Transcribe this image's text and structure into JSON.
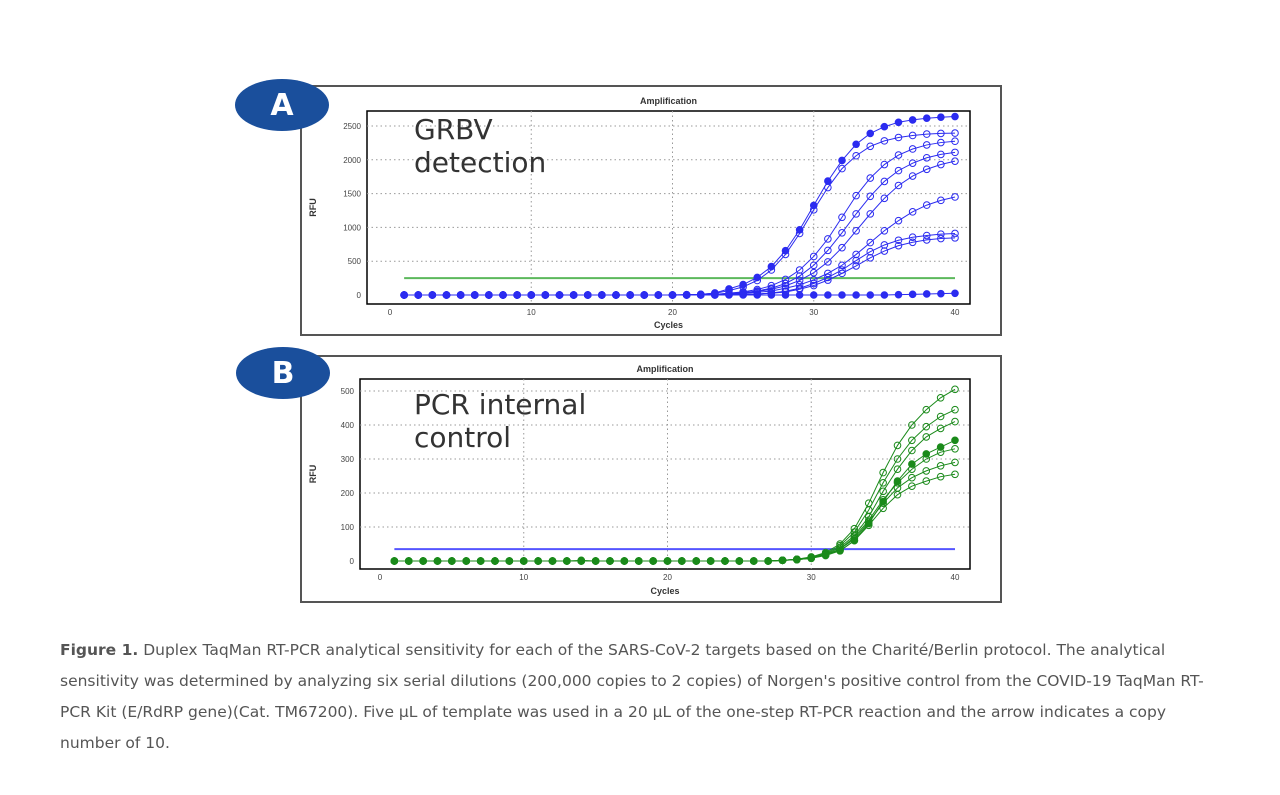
{
  "figure": {
    "panel_a": {
      "badge": "A",
      "overlay_line1": "GRBV",
      "overlay_line2": "detection"
    },
    "panel_b": {
      "badge": "B",
      "overlay_line1": "PCR internal",
      "overlay_line2": "control"
    },
    "caption_label": "Figure 1.",
    "caption_text": " Duplex TaqMan RT-PCR analytical sensitivity for each of the SARS-CoV-2 targets based on the Charité/Berlin protocol. The analytical sensitivity was determined by analyzing six serial dilutions (200,000 copies to 2 copies) of Norgen's positive control from the COVID-19 TaqMan RT-PCR Kit (E/RdRP gene)(Cat. TM67200). Five µL of template was used in a 20 µL of the one-step RT-PCR reaction and the arrow indicates a copy number of 10."
  },
  "chart_data": [
    {
      "type": "line",
      "title": "Amplification",
      "xlabel": "Cycles",
      "ylabel": "RFU",
      "xlim": [
        0,
        40
      ],
      "ylim": [
        0,
        2500
      ],
      "xticks": [
        0,
        10,
        20,
        30,
        40
      ],
      "yticks": [
        0,
        500,
        1000,
        1500,
        2000,
        2500
      ],
      "grid": true,
      "series_color": "#2b2bf0",
      "threshold": {
        "value": 250,
        "color": "#5cb85c"
      },
      "x": [
        1,
        2,
        3,
        4,
        5,
        6,
        7,
        8,
        9,
        10,
        11,
        12,
        13,
        14,
        15,
        16,
        17,
        18,
        19,
        20,
        21,
        22,
        23,
        24,
        25,
        26,
        27,
        28,
        29,
        30,
        31,
        32,
        33,
        34,
        35,
        36,
        37,
        38,
        39,
        40
      ],
      "series": [
        {
          "filled": true,
          "y": [
            0,
            0,
            0,
            0,
            0,
            0,
            0,
            0,
            0,
            0,
            0,
            0,
            0,
            0,
            0,
            0,
            0,
            0,
            0,
            0,
            5,
            10,
            30,
            90,
            155,
            260,
            420,
            655,
            965,
            1325,
            1685,
            1990,
            2230,
            2390,
            2490,
            2555,
            2590,
            2615,
            2630,
            2640
          ]
        },
        {
          "filled": false,
          "y": [
            0,
            0,
            0,
            0,
            0,
            0,
            0,
            0,
            0,
            0,
            0,
            0,
            0,
            0,
            0,
            0,
            0,
            0,
            0,
            0,
            5,
            10,
            25,
            65,
            120,
            215,
            370,
            600,
            910,
            1260,
            1590,
            1870,
            2060,
            2200,
            2280,
            2330,
            2360,
            2380,
            2390,
            2395
          ]
        },
        {
          "filled": false,
          "y": [
            0,
            0,
            0,
            0,
            0,
            0,
            0,
            0,
            0,
            0,
            0,
            0,
            0,
            0,
            0,
            0,
            0,
            0,
            0,
            0,
            0,
            5,
            10,
            27,
            47,
            81,
            138,
            230,
            370,
            570,
            830,
            1150,
            1470,
            1730,
            1930,
            2070,
            2160,
            2220,
            2255,
            2275
          ]
        },
        {
          "filled": false,
          "y": [
            0,
            0,
            0,
            0,
            0,
            0,
            0,
            0,
            0,
            0,
            0,
            0,
            0,
            0,
            0,
            0,
            0,
            0,
            0,
            0,
            0,
            5,
            10,
            20,
            35,
            60,
            100,
            170,
            280,
            440,
            660,
            920,
            1200,
            1460,
            1680,
            1840,
            1950,
            2030,
            2080,
            2110
          ]
        },
        {
          "filled": false,
          "y": [
            0,
            0,
            0,
            0,
            0,
            0,
            0,
            0,
            0,
            0,
            0,
            0,
            0,
            0,
            0,
            0,
            0,
            0,
            0,
            0,
            0,
            5,
            10,
            20,
            32,
            53,
            85,
            135,
            215,
            330,
            490,
            700,
            950,
            1200,
            1430,
            1620,
            1760,
            1860,
            1930,
            1980
          ]
        },
        {
          "filled": false,
          "y": [
            0,
            0,
            0,
            0,
            0,
            0,
            0,
            0,
            0,
            0,
            0,
            0,
            0,
            0,
            0,
            0,
            0,
            0,
            0,
            0,
            0,
            0,
            5,
            15,
            25,
            40,
            60,
            100,
            150,
            225,
            320,
            440,
            600,
            775,
            950,
            1100,
            1230,
            1330,
            1400,
            1450
          ]
        },
        {
          "filled": false,
          "y": [
            0,
            0,
            0,
            0,
            0,
            0,
            0,
            0,
            0,
            0,
            0,
            0,
            0,
            0,
            0,
            0,
            0,
            0,
            0,
            0,
            0,
            0,
            0,
            5,
            10,
            15,
            30,
            55,
            100,
            170,
            260,
            370,
            510,
            640,
            740,
            810,
            855,
            880,
            900,
            910
          ]
        },
        {
          "filled": false,
          "y": [
            0,
            0,
            0,
            0,
            0,
            0,
            0,
            0,
            0,
            0,
            0,
            0,
            0,
            0,
            0,
            0,
            0,
            0,
            0,
            0,
            0,
            0,
            0,
            5,
            10,
            15,
            25,
            45,
            85,
            140,
            220,
            320,
            430,
            550,
            650,
            730,
            780,
            815,
            835,
            845
          ]
        },
        {
          "filled": true,
          "y": [
            0,
            0,
            0,
            0,
            0,
            0,
            0,
            0,
            0,
            0,
            0,
            0,
            0,
            0,
            0,
            0,
            0,
            0,
            0,
            0,
            0,
            0,
            0,
            0,
            0,
            0,
            0,
            0,
            0,
            0,
            0,
            0,
            0,
            0,
            0,
            5,
            10,
            15,
            20,
            25
          ]
        }
      ]
    },
    {
      "type": "line",
      "title": "Amplification",
      "xlabel": "Cycles",
      "ylabel": "RFU",
      "xlim": [
        0,
        40
      ],
      "ylim": [
        0,
        500
      ],
      "xticks": [
        0,
        10,
        20,
        30,
        40
      ],
      "yticks": [
        0,
        100,
        200,
        300,
        400,
        500
      ],
      "grid": true,
      "series_color": "#1a8a1a",
      "threshold": {
        "value": 35,
        "color": "#5555ff"
      },
      "x": [
        1,
        2,
        3,
        4,
        5,
        6,
        7,
        8,
        9,
        10,
        11,
        12,
        13,
        14,
        15,
        16,
        17,
        18,
        19,
        20,
        21,
        22,
        23,
        24,
        25,
        26,
        27,
        28,
        29,
        30,
        31,
        32,
        33,
        34,
        35,
        36,
        37,
        38,
        39,
        40
      ],
      "series": [
        {
          "filled": false,
          "y": [
            0,
            0,
            0,
            0,
            0,
            0,
            0,
            0,
            0,
            0,
            0,
            0,
            0,
            0,
            0,
            0,
            0,
            0,
            0,
            0,
            0,
            0,
            0,
            0,
            0,
            0,
            0,
            2,
            5,
            12,
            25,
            50,
            95,
            170,
            260,
            340,
            400,
            445,
            480,
            505
          ]
        },
        {
          "filled": false,
          "y": [
            0,
            0,
            0,
            0,
            0,
            0,
            0,
            0,
            0,
            0,
            0,
            0,
            0,
            0,
            0,
            0,
            0,
            0,
            0,
            0,
            0,
            0,
            0,
            0,
            0,
            0,
            0,
            2,
            5,
            10,
            22,
            45,
            85,
            150,
            230,
            300,
            355,
            395,
            425,
            445
          ]
        },
        {
          "filled": false,
          "y": [
            0,
            0,
            0,
            0,
            0,
            0,
            0,
            0,
            0,
            0,
            0,
            0,
            0,
            0,
            0,
            0,
            0,
            0,
            0,
            0,
            0,
            0,
            0,
            0,
            0,
            0,
            0,
            2,
            5,
            10,
            20,
            40,
            75,
            130,
            205,
            270,
            325,
            365,
            390,
            410
          ]
        },
        {
          "filled": true,
          "y": [
            0,
            0,
            0,
            0,
            0,
            0,
            0,
            0,
            0,
            0,
            0,
            0,
            0,
            2,
            0,
            0,
            0,
            0,
            0,
            0,
            0,
            0,
            0,
            0,
            0,
            0,
            0,
            2,
            5,
            10,
            20,
            30,
            60,
            110,
            175,
            235,
            285,
            315,
            335,
            355
          ]
        },
        {
          "filled": false,
          "y": [
            0,
            0,
            0,
            0,
            0,
            0,
            0,
            0,
            0,
            0,
            0,
            0,
            0,
            0,
            0,
            0,
            0,
            0,
            0,
            0,
            0,
            0,
            0,
            0,
            0,
            0,
            0,
            2,
            4,
            8,
            18,
            35,
            70,
            120,
            180,
            230,
            270,
            300,
            320,
            330
          ]
        },
        {
          "filled": false,
          "y": [
            0,
            0,
            0,
            0,
            0,
            0,
            0,
            0,
            0,
            0,
            0,
            0,
            0,
            0,
            0,
            0,
            0,
            0,
            0,
            0,
            0,
            0,
            0,
            0,
            0,
            0,
            0,
            2,
            4,
            8,
            18,
            35,
            65,
            115,
            170,
            215,
            245,
            265,
            280,
            290
          ]
        },
        {
          "filled": false,
          "y": [
            0,
            0,
            0,
            0,
            0,
            0,
            0,
            0,
            0,
            0,
            0,
            0,
            0,
            0,
            0,
            0,
            0,
            0,
            0,
            0,
            0,
            0,
            0,
            0,
            0,
            0,
            0,
            2,
            4,
            8,
            16,
            30,
            60,
            105,
            155,
            195,
            220,
            235,
            248,
            255
          ]
        }
      ]
    }
  ]
}
